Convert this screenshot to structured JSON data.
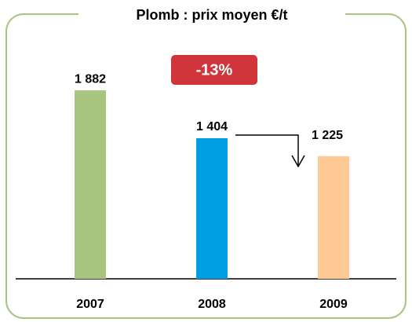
{
  "chart_data": {
    "type": "bar",
    "title": "Plomb : prix moyen €/t",
    "categories": [
      "2007",
      "2008",
      "2009"
    ],
    "values": [
      1882,
      1404,
      1225
    ],
    "value_labels": [
      "1 882",
      "1 404",
      "1 225"
    ],
    "colors": [
      "#a9c47f",
      "#009fe3",
      "#fec995"
    ],
    "annotation": "-13%",
    "ylim": [
      0,
      2000
    ]
  }
}
